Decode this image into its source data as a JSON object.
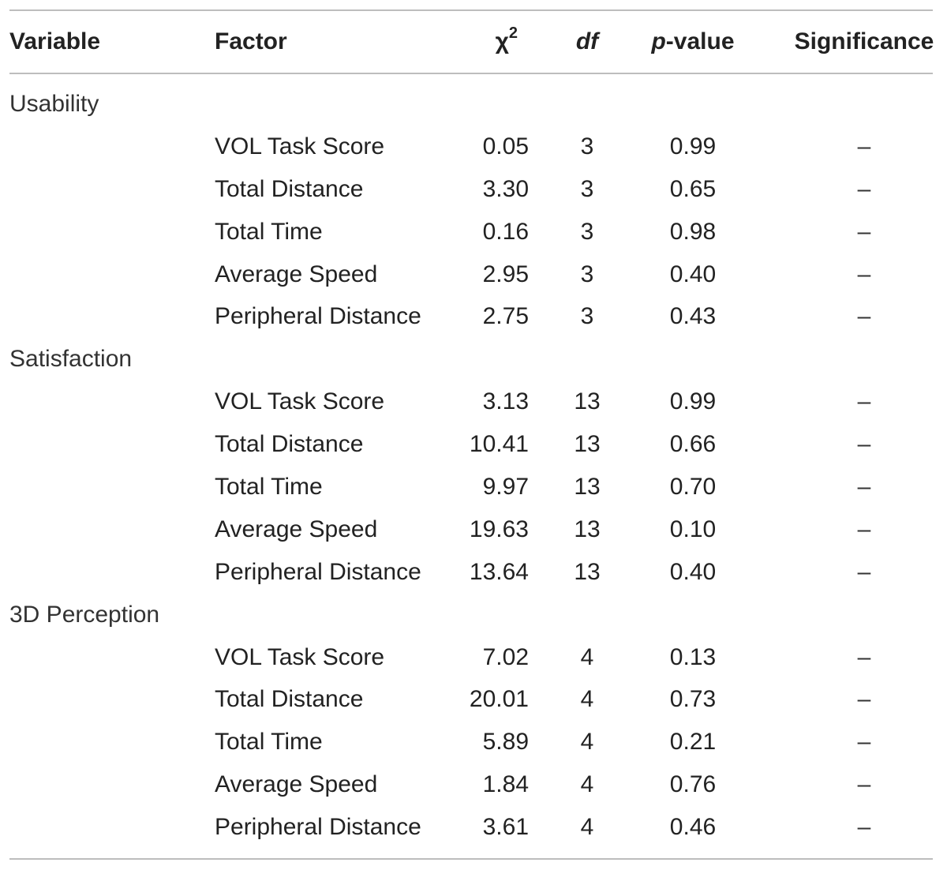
{
  "table": {
    "headers": {
      "variable": "Variable",
      "factor": "Factor",
      "chi_symbol": "χ",
      "chi_sup": "2",
      "df": "df",
      "p_italic": "p",
      "p_rest": "-value",
      "significance": "Significance"
    },
    "groups": [
      {
        "label": "Usability",
        "rows": [
          {
            "factor": "VOL Task Score",
            "chi2": "0.05",
            "df": "3",
            "p": "0.99",
            "sig": "–"
          },
          {
            "factor": "Total Distance",
            "chi2": "3.30",
            "df": "3",
            "p": "0.65",
            "sig": "–"
          },
          {
            "factor": "Total Time",
            "chi2": "0.16",
            "df": "3",
            "p": "0.98",
            "sig": "–"
          },
          {
            "factor": "Average Speed",
            "chi2": "2.95",
            "df": "3",
            "p": "0.40",
            "sig": "–"
          },
          {
            "factor": "Peripheral Distance",
            "chi2": "2.75",
            "df": "3",
            "p": "0.43",
            "sig": "–"
          }
        ]
      },
      {
        "label": "Satisfaction",
        "rows": [
          {
            "factor": "VOL Task Score",
            "chi2": "3.13",
            "df": "13",
            "p": "0.99",
            "sig": "–"
          },
          {
            "factor": "Total Distance",
            "chi2": "10.41",
            "df": "13",
            "p": "0.66",
            "sig": "–"
          },
          {
            "factor": "Total Time",
            "chi2": "9.97",
            "df": "13",
            "p": "0.70",
            "sig": "–"
          },
          {
            "factor": "Average Speed",
            "chi2": "19.63",
            "df": "13",
            "p": "0.10",
            "sig": "–"
          },
          {
            "factor": "Peripheral Distance",
            "chi2": "13.64",
            "df": "13",
            "p": "0.40",
            "sig": "–"
          }
        ]
      },
      {
        "label": "3D Perception",
        "rows": [
          {
            "factor": "VOL Task Score",
            "chi2": "7.02",
            "df": "4",
            "p": "0.13",
            "sig": "–"
          },
          {
            "factor": "Total Distance",
            "chi2": "20.01",
            "df": "4",
            "p": "0.73",
            "sig": "–"
          },
          {
            "factor": "Total Time",
            "chi2": "5.89",
            "df": "4",
            "p": "0.21",
            "sig": "–"
          },
          {
            "factor": "Average Speed",
            "chi2": "1.84",
            "df": "4",
            "p": "0.76",
            "sig": "–"
          },
          {
            "factor": "Peripheral Distance",
            "chi2": "3.61",
            "df": "4",
            "p": "0.46",
            "sig": "–"
          }
        ]
      }
    ]
  }
}
